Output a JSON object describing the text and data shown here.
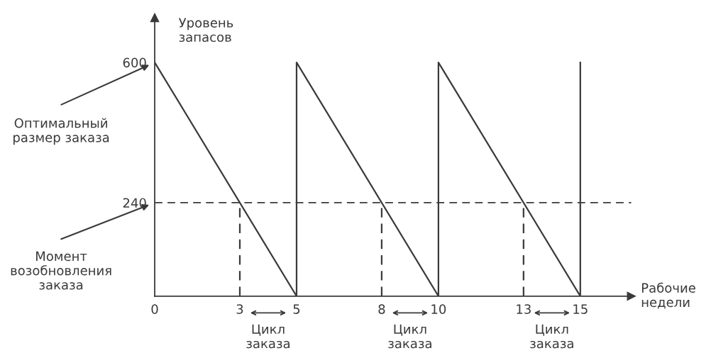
{
  "chart_data": {
    "type": "line",
    "ylabel": "Уровень\nзапасов",
    "xlabel": "Рабочие\nнедели",
    "xlim": [
      0,
      16.8
    ],
    "ylim": [
      0,
      715
    ],
    "xticks": [
      0,
      3,
      5,
      8,
      10,
      13,
      15
    ],
    "yticks": [
      240,
      600
    ],
    "grid": false,
    "legend": false,
    "marker": "none",
    "series": [
      {
        "color": "#3a3a3a",
        "x": [
          0,
          5,
          5,
          10,
          10,
          15,
          15
        ],
        "values": [
          600,
          0,
          600,
          0,
          600,
          0,
          600
        ],
        "line_style": "solid"
      },
      {
        "color": "#3a3a3a",
        "x": [
          3,
          3
        ],
        "values": [
          0,
          240
        ],
        "line_style": "dashed"
      },
      {
        "color": "#3a3a3a",
        "x": [
          8,
          8
        ],
        "values": [
          0,
          240
        ],
        "line_style": "dashed"
      },
      {
        "color": "#3a3a3a",
        "x": [
          13,
          13
        ],
        "values": [
          0,
          240
        ],
        "line_style": "dashed"
      }
    ],
    "ref_lines": [
      {
        "axis": "y",
        "value": 240,
        "color": "#3a3a3a",
        "line_style": "dashed"
      }
    ],
    "annotations": [
      "Оптимальный\nразмер заказа",
      "Момент\nвозобновления\nзаказа",
      "Цикл\nзаказа",
      "Цикл\nзаказа",
      "Цикл\nзаказа"
    ]
  }
}
